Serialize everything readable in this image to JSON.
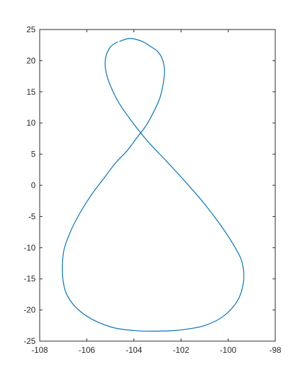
{
  "chart_data": {
    "type": "line",
    "title": "",
    "xlabel": "",
    "ylabel": "",
    "xlim": [
      -108,
      -98
    ],
    "ylim": [
      -25,
      25
    ],
    "xticks": [
      -108,
      -106,
      -104,
      -102,
      -100,
      -98
    ],
    "yticks": [
      -25,
      -20,
      -15,
      -10,
      -5,
      0,
      5,
      10,
      15,
      20,
      25
    ],
    "xtick_labels": [
      "-108",
      "-106",
      "-104",
      "-102",
      "-100",
      "-98"
    ],
    "ytick_labels": [
      "-25",
      "-20",
      "-15",
      "-10",
      "-5",
      "0",
      "5",
      "10",
      "15",
      "20",
      "25"
    ],
    "grid": false,
    "box": true,
    "series": [
      {
        "color": "#0072bd",
        "x": [
          -104.6,
          -104.3,
          -104.0,
          -103.6,
          -103.3,
          -103.0,
          -102.8,
          -102.7,
          -102.75,
          -102.9,
          -103.2,
          -103.5,
          -103.9,
          -104.3,
          -104.8,
          -105.3,
          -105.8,
          -106.3,
          -106.7,
          -107.0,
          -107.0,
          -106.7,
          -106.0,
          -105.0,
          -104.0,
          -103.0,
          -102.0,
          -101.0,
          -100.2,
          -99.6,
          -99.35,
          -99.4,
          -99.7,
          -100.3,
          -101.0,
          -101.8,
          -102.6,
          -103.4,
          -104.0,
          -104.6,
          -105.0,
          -105.2,
          -105.2,
          -105.0,
          -104.7
        ],
        "y": [
          23.1,
          23.5,
          23.5,
          23.0,
          22.3,
          21.5,
          20.3,
          18.5,
          16.5,
          14.0,
          11.5,
          9.5,
          7.5,
          5.5,
          3.5,
          1.0,
          -1.5,
          -4.5,
          -7.5,
          -11.0,
          -15.5,
          -18.5,
          -21.0,
          -22.7,
          -23.3,
          -23.4,
          -23.2,
          -22.5,
          -21.0,
          -18.5,
          -15.5,
          -12.5,
          -10.0,
          -6.5,
          -3.0,
          0.5,
          3.8,
          7.0,
          9.8,
          13.0,
          16.0,
          18.5,
          20.5,
          22.2,
          23.0
        ]
      }
    ]
  }
}
